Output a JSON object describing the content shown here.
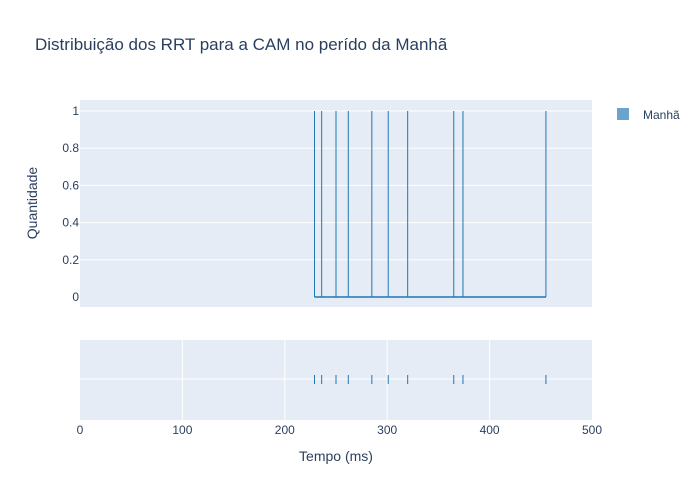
{
  "chart_data": {
    "type": "histogram",
    "title": "Distribuição dos RRT para a CAM no perído da Manhã",
    "xlabel": "Tempo (ms)",
    "ylabel": "Quantidade",
    "xlim": [
      0,
      500
    ],
    "ylim": [
      0,
      1
    ],
    "x_ticks": [
      "0",
      "100",
      "200",
      "300",
      "400",
      "500"
    ],
    "y_ticks": [
      "0",
      "0.2",
      "0.4",
      "0.6",
      "0.8",
      "1"
    ],
    "grid": true,
    "legend_position": "top-right",
    "series": [
      {
        "name": "Manhã",
        "color": "#1f77b4",
        "legend_color": "#6aa3cc",
        "values": [
          229,
          236,
          250,
          262,
          285,
          301,
          320,
          365,
          374,
          455
        ]
      }
    ],
    "rug": true
  }
}
